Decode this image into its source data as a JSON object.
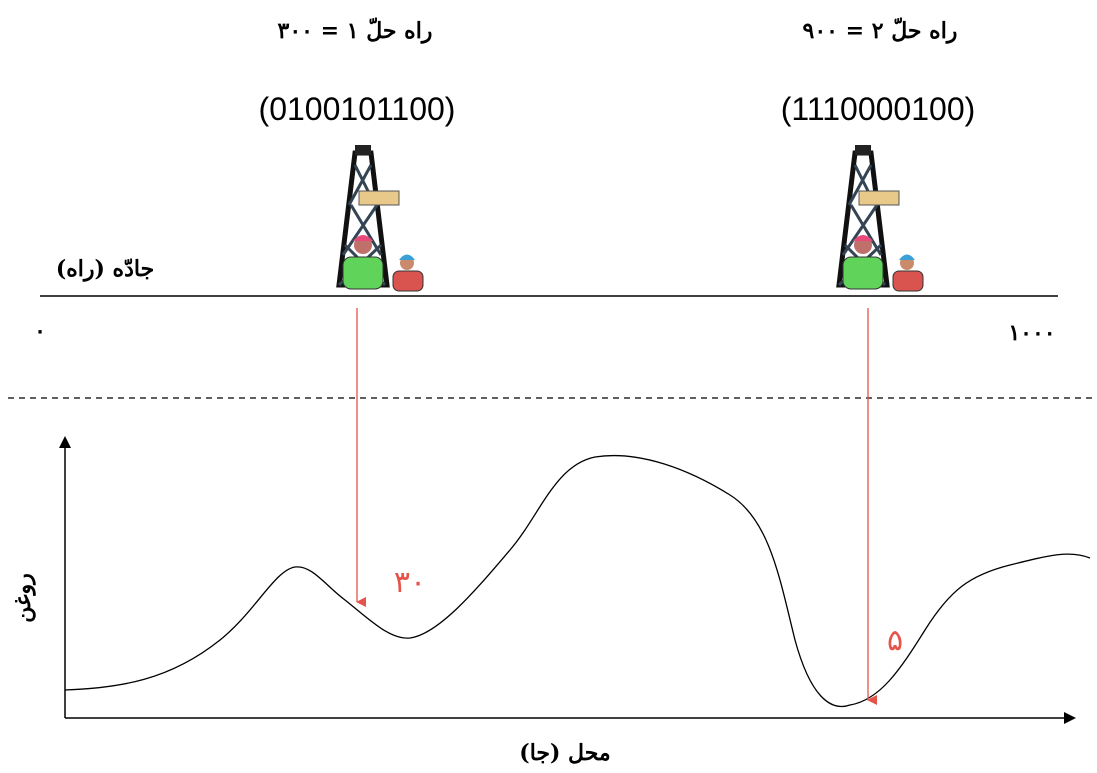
{
  "solutions": [
    {
      "label": "راه حلّ ۱ = ۳۰۰",
      "code": "(0100101100)",
      "oil": "۳۰"
    },
    {
      "label": "راه حلّ ۲ = ۹۰۰",
      "code": "(1110000100)",
      "oil": "۵"
    }
  ],
  "road": {
    "label": "جادّه (راه)",
    "start": "۰",
    "end": "۱۰۰۰"
  },
  "graph": {
    "y_label": "روغن",
    "x_label": "محل (جا)"
  }
}
